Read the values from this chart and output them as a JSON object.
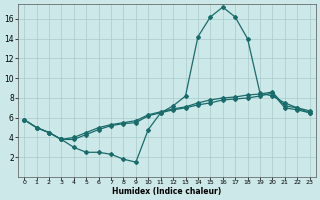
{
  "xlabel": "Humidex (Indice chaleur)",
  "bg_color": "#cce8e8",
  "grid_color": "#aacccc",
  "line_color": "#1a6b6b",
  "xlim": [
    -0.5,
    23.5
  ],
  "ylim": [
    0,
    17.5
  ],
  "xticks": [
    0,
    1,
    2,
    3,
    4,
    5,
    6,
    7,
    8,
    9,
    10,
    11,
    12,
    13,
    14,
    15,
    16,
    17,
    18,
    19,
    20,
    21,
    22,
    23
  ],
  "yticks": [
    2,
    4,
    6,
    8,
    10,
    12,
    14,
    16
  ],
  "series1_x": [
    0,
    1,
    2,
    3,
    4,
    5,
    6,
    7,
    8,
    9,
    10,
    11,
    12,
    13,
    14,
    15,
    16,
    17,
    18,
    19,
    20,
    21,
    22,
    23
  ],
  "series1_y": [
    5.8,
    5.0,
    4.5,
    3.8,
    3.0,
    2.5,
    2.5,
    2.3,
    1.8,
    1.5,
    4.8,
    6.5,
    7.2,
    8.2,
    14.2,
    16.2,
    17.2,
    16.2,
    14.0,
    8.5,
    8.2,
    7.5,
    7.0,
    6.5
  ],
  "series2_x": [
    0,
    1,
    2,
    3,
    4,
    5,
    6,
    7,
    8,
    9,
    10,
    11,
    12,
    13,
    14,
    15,
    16,
    17,
    18,
    19,
    20,
    21,
    22,
    23
  ],
  "series2_y": [
    5.8,
    5.0,
    4.5,
    3.8,
    3.8,
    4.3,
    4.8,
    5.2,
    5.4,
    5.5,
    6.2,
    6.5,
    6.8,
    7.0,
    7.3,
    7.5,
    7.8,
    7.9,
    8.0,
    8.2,
    8.5,
    7.0,
    6.8,
    6.5
  ],
  "series3_x": [
    0,
    1,
    2,
    3,
    4,
    5,
    6,
    7,
    8,
    9,
    10,
    11,
    12,
    13,
    14,
    15,
    16,
    17,
    18,
    19,
    20,
    21,
    22,
    23
  ],
  "series3_y": [
    5.8,
    5.0,
    4.5,
    3.8,
    4.0,
    4.5,
    5.0,
    5.3,
    5.5,
    5.7,
    6.3,
    6.6,
    6.9,
    7.1,
    7.5,
    7.8,
    8.0,
    8.1,
    8.3,
    8.4,
    8.6,
    7.2,
    7.0,
    6.7
  ]
}
